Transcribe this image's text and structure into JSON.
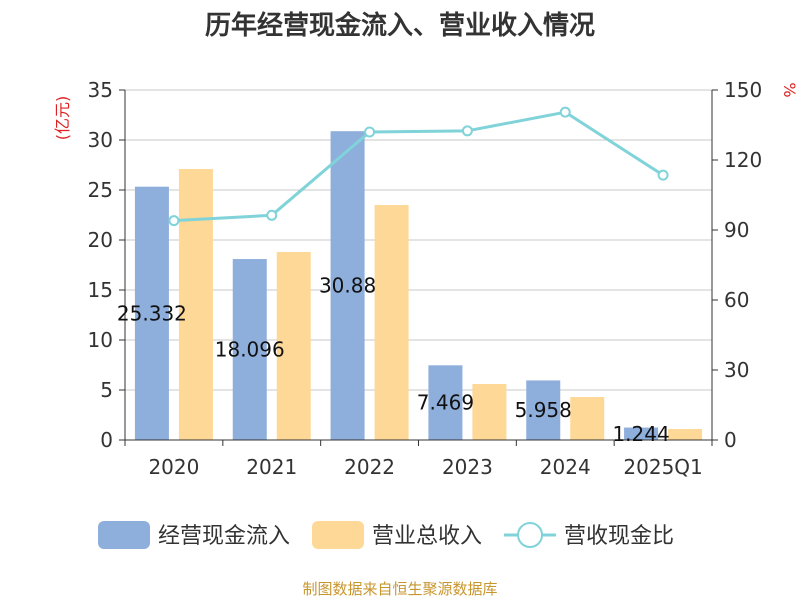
{
  "chart_data": {
    "type": "bar",
    "title": "历年经营现金流入、营业收入情况",
    "categories": [
      "2020",
      "2021",
      "2022",
      "2023",
      "2024",
      "2025Q1"
    ],
    "left_axis": {
      "unit_label": "(亿元)",
      "ylim": [
        0,
        35
      ],
      "ticks": [
        "0",
        "5",
        "10",
        "15",
        "20",
        "25",
        "30",
        "35"
      ]
    },
    "right_axis": {
      "unit_label": "%",
      "ylim": [
        0,
        150
      ],
      "ticks": [
        "0",
        "30",
        "60",
        "90",
        "120",
        "150"
      ]
    },
    "series": [
      {
        "name": "经营现金流入",
        "kind": "bar",
        "axis": "left",
        "color": "#8eaedc",
        "values": [
          25.332,
          18.096,
          30.88,
          7.469,
          5.958,
          1.244
        ],
        "data_labels": [
          "25.332",
          "18.096",
          "30.88",
          "7.469",
          "5.958",
          "1.244"
        ]
      },
      {
        "name": "营业总收入",
        "kind": "bar",
        "axis": "left",
        "color": "#fed897",
        "values": [
          27.1,
          18.8,
          23.5,
          5.6,
          4.3,
          1.1
        ]
      },
      {
        "name": "营收现金比",
        "kind": "line",
        "axis": "right",
        "color": "#7fd3d9",
        "values": [
          94,
          96.3,
          132,
          132.5,
          140.5,
          113.5
        ]
      }
    ],
    "grid": true,
    "legend_position": "bottom"
  },
  "source_text": "制图数据来自恒生聚源数据库"
}
